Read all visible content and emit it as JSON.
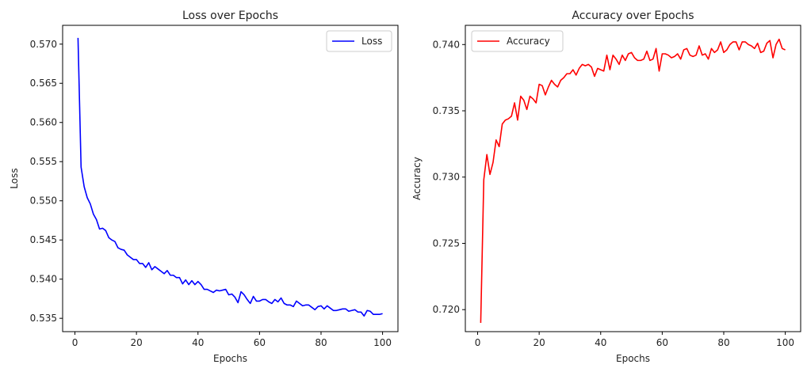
{
  "chart_data": [
    {
      "type": "line",
      "title": "Loss over Epochs",
      "xlabel": "Epochs",
      "ylabel": "Loss",
      "xlim": [
        -4,
        105
      ],
      "ylim": [
        0.5333,
        0.5724
      ],
      "xticks": [
        0,
        20,
        40,
        60,
        80,
        100
      ],
      "xtick_labels": [
        "0",
        "20",
        "40",
        "60",
        "80",
        "100"
      ],
      "yticks": [
        0.535,
        0.54,
        0.545,
        0.55,
        0.555,
        0.56,
        0.565,
        0.57
      ],
      "ytick_labels": [
        "0.535",
        "0.540",
        "0.545",
        "0.550",
        "0.555",
        "0.560",
        "0.565",
        "0.570"
      ],
      "grid": false,
      "legend_position": "top-right",
      "series": [
        {
          "name": "Loss",
          "color": "#0000ff",
          "x": [
            1,
            2,
            3,
            4,
            5,
            6,
            7,
            8,
            9,
            10,
            11,
            12,
            13,
            14,
            15,
            16,
            17,
            18,
            19,
            20,
            21,
            22,
            23,
            24,
            25,
            26,
            27,
            28,
            29,
            30,
            31,
            32,
            33,
            34,
            35,
            36,
            37,
            38,
            39,
            40,
            41,
            42,
            43,
            44,
            45,
            46,
            47,
            48,
            49,
            50,
            51,
            52,
            53,
            54,
            55,
            56,
            57,
            58,
            59,
            60,
            61,
            62,
            63,
            64,
            65,
            66,
            67,
            68,
            69,
            70,
            71,
            72,
            73,
            74,
            75,
            76,
            77,
            78,
            79,
            80,
            81,
            82,
            83,
            84,
            85,
            86,
            87,
            88,
            89,
            90,
            91,
            92,
            93,
            94,
            95,
            96,
            97,
            98,
            99,
            100
          ],
          "values": [
            0.5708,
            0.5543,
            0.5518,
            0.5504,
            0.5496,
            0.5483,
            0.5476,
            0.5464,
            0.5465,
            0.5462,
            0.5453,
            0.545,
            0.5448,
            0.544,
            0.5438,
            0.5437,
            0.5431,
            0.5428,
            0.5425,
            0.5425,
            0.542,
            0.542,
            0.5415,
            0.5421,
            0.5412,
            0.5416,
            0.5413,
            0.541,
            0.5407,
            0.5411,
            0.5405,
            0.5405,
            0.5402,
            0.5402,
            0.5394,
            0.5399,
            0.5393,
            0.5398,
            0.5393,
            0.5397,
            0.5393,
            0.5387,
            0.5387,
            0.5385,
            0.5383,
            0.5386,
            0.5385,
            0.5386,
            0.5387,
            0.538,
            0.5381,
            0.5377,
            0.537,
            0.5384,
            0.538,
            0.5374,
            0.5369,
            0.5378,
            0.5372,
            0.5372,
            0.5374,
            0.5374,
            0.5371,
            0.5369,
            0.5374,
            0.5371,
            0.5376,
            0.5369,
            0.5367,
            0.5367,
            0.5365,
            0.5372,
            0.5369,
            0.5366,
            0.5367,
            0.5367,
            0.5364,
            0.5361,
            0.5365,
            0.5366,
            0.5362,
            0.5366,
            0.5363,
            0.536,
            0.536,
            0.5361,
            0.5362,
            0.5362,
            0.5359,
            0.536,
            0.5361,
            0.5358,
            0.5358,
            0.5353,
            0.536,
            0.5359,
            0.5355,
            0.5355,
            0.5355,
            0.5356
          ]
        }
      ]
    },
    {
      "type": "line",
      "title": "Accuracy over Epochs",
      "xlabel": "Epochs",
      "ylabel": "Accuracy",
      "xlim": [
        -4,
        105
      ],
      "ylim": [
        0.71834,
        0.74145
      ],
      "xticks": [
        0,
        20,
        40,
        60,
        80,
        100
      ],
      "xtick_labels": [
        "0",
        "20",
        "40",
        "60",
        "80",
        "100"
      ],
      "yticks": [
        0.72,
        0.725,
        0.73,
        0.735,
        0.74
      ],
      "ytick_labels": [
        "0.720",
        "0.725",
        "0.730",
        "0.735",
        "0.740"
      ],
      "grid": false,
      "legend_position": "top-left",
      "series": [
        {
          "name": "Accuracy",
          "color": "#ff0000",
          "x": [
            1,
            2,
            3,
            4,
            5,
            6,
            7,
            8,
            9,
            10,
            11,
            12,
            13,
            14,
            15,
            16,
            17,
            18,
            19,
            20,
            21,
            22,
            23,
            24,
            25,
            26,
            27,
            28,
            29,
            30,
            31,
            32,
            33,
            34,
            35,
            36,
            37,
            38,
            39,
            40,
            41,
            42,
            43,
            44,
            45,
            46,
            47,
            48,
            49,
            50,
            51,
            52,
            53,
            54,
            55,
            56,
            57,
            58,
            59,
            60,
            61,
            62,
            63,
            64,
            65,
            66,
            67,
            68,
            69,
            70,
            71,
            72,
            73,
            74,
            75,
            76,
            77,
            78,
            79,
            80,
            81,
            82,
            83,
            84,
            85,
            86,
            87,
            88,
            89,
            90,
            91,
            92,
            93,
            94,
            95,
            96,
            97,
            98,
            99,
            100
          ],
          "values": [
            0.719,
            0.7298,
            0.7317,
            0.7302,
            0.7311,
            0.7328,
            0.7323,
            0.734,
            0.7343,
            0.7344,
            0.7346,
            0.7356,
            0.7343,
            0.7361,
            0.7358,
            0.7351,
            0.7361,
            0.7359,
            0.7356,
            0.737,
            0.7369,
            0.7362,
            0.7368,
            0.7373,
            0.737,
            0.7368,
            0.7373,
            0.7375,
            0.7378,
            0.7378,
            0.7381,
            0.7377,
            0.7382,
            0.7385,
            0.7384,
            0.7385,
            0.7383,
            0.7376,
            0.7382,
            0.7381,
            0.738,
            0.7392,
            0.7381,
            0.7392,
            0.7389,
            0.7385,
            0.7392,
            0.7388,
            0.7393,
            0.7394,
            0.739,
            0.7388,
            0.7388,
            0.7389,
            0.7395,
            0.7388,
            0.7389,
            0.7397,
            0.738,
            0.7393,
            0.7393,
            0.7392,
            0.739,
            0.7391,
            0.7393,
            0.7389,
            0.7396,
            0.7397,
            0.7392,
            0.7391,
            0.7392,
            0.7399,
            0.7392,
            0.7393,
            0.7389,
            0.7397,
            0.7394,
            0.7396,
            0.7402,
            0.7394,
            0.7396,
            0.74,
            0.7402,
            0.7402,
            0.7396,
            0.7402,
            0.7402,
            0.74,
            0.7399,
            0.7397,
            0.7401,
            0.7394,
            0.7395,
            0.7401,
            0.7403,
            0.739,
            0.74,
            0.7404,
            0.7397,
            0.7396
          ]
        }
      ]
    }
  ]
}
